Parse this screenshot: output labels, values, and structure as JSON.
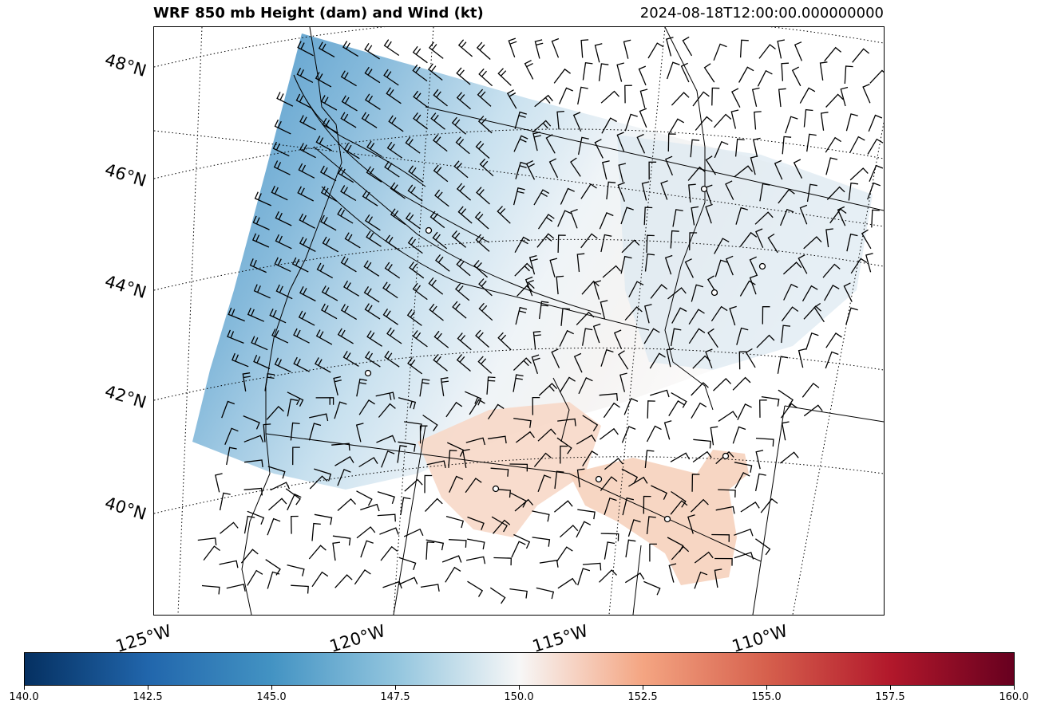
{
  "title": "WRF 850 mb Height (dam) and Wind (kt)",
  "valid_time": "2024-08-18T12:00:00.000000000",
  "lat_labels": [
    "48°N",
    "46°N",
    "44°N",
    "42°N",
    "40°N"
  ],
  "lon_labels": [
    "125°W",
    "120°W",
    "115°W",
    "110°W"
  ],
  "colorbar": {
    "colormap": "RdBu_r",
    "min": 140.0,
    "max": 160.0,
    "ticks": [
      "140.0",
      "142.5",
      "145.0",
      "147.5",
      "150.0",
      "152.5",
      "155.0",
      "157.5",
      "160.0"
    ]
  },
  "colors": {
    "low": "#2166ac",
    "mid": "#f7f7f7",
    "high": "#d6604d",
    "barb": "#000000"
  }
}
